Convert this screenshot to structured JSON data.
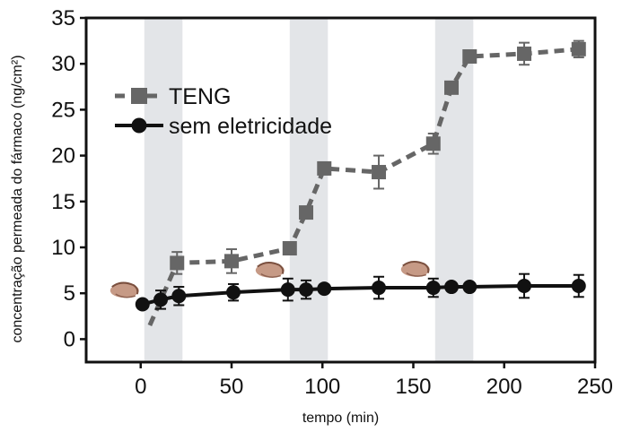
{
  "chart_data": {
    "type": "line",
    "title": "",
    "xlabel": "tempo (min)",
    "ylabel": "concentração permeada do fármaco (ng/cm²)",
    "xlim": [
      -30,
      250
    ],
    "ylim": [
      -2.5,
      35
    ],
    "xticks": [
      0,
      50,
      100,
      150,
      200,
      250
    ],
    "yticks": [
      0,
      5,
      10,
      15,
      20,
      25,
      30,
      35
    ],
    "grid": false,
    "legend_position": "top-left",
    "stimulation_windows": [
      [
        2,
        23
      ],
      [
        82,
        103
      ],
      [
        162,
        183
      ]
    ],
    "stimulation_icon": "hand-icon",
    "series": [
      {
        "name": "TENG",
        "style": "dashed",
        "marker": "square",
        "color": "#666666",
        "x": [
          5,
          20,
          50,
          82,
          91,
          101,
          131,
          161,
          171,
          181,
          211,
          241
        ],
        "y": [
          1.5,
          8.3,
          8.5,
          9.9,
          13.8,
          18.6,
          18.2,
          21.3,
          27.4,
          30.8,
          31.1,
          31.6
        ],
        "err": [
          0,
          1.2,
          1.3,
          0,
          0,
          0,
          1.8,
          1.1,
          0,
          0,
          1.2,
          0.9
        ]
      },
      {
        "name": "sem eletricidade",
        "style": "solid",
        "marker": "circle",
        "color": "#111111",
        "x": [
          1,
          11,
          21,
          51,
          81,
          91,
          101,
          131,
          161,
          171,
          181,
          211,
          241
        ],
        "y": [
          3.8,
          4.3,
          4.7,
          5.1,
          5.4,
          5.4,
          5.5,
          5.6,
          5.6,
          5.7,
          5.7,
          5.8,
          5.8
        ],
        "err": [
          0,
          1.0,
          1.0,
          0.9,
          1.2,
          1.0,
          0,
          1.2,
          1.0,
          0,
          0,
          1.3,
          1.2
        ]
      }
    ]
  }
}
